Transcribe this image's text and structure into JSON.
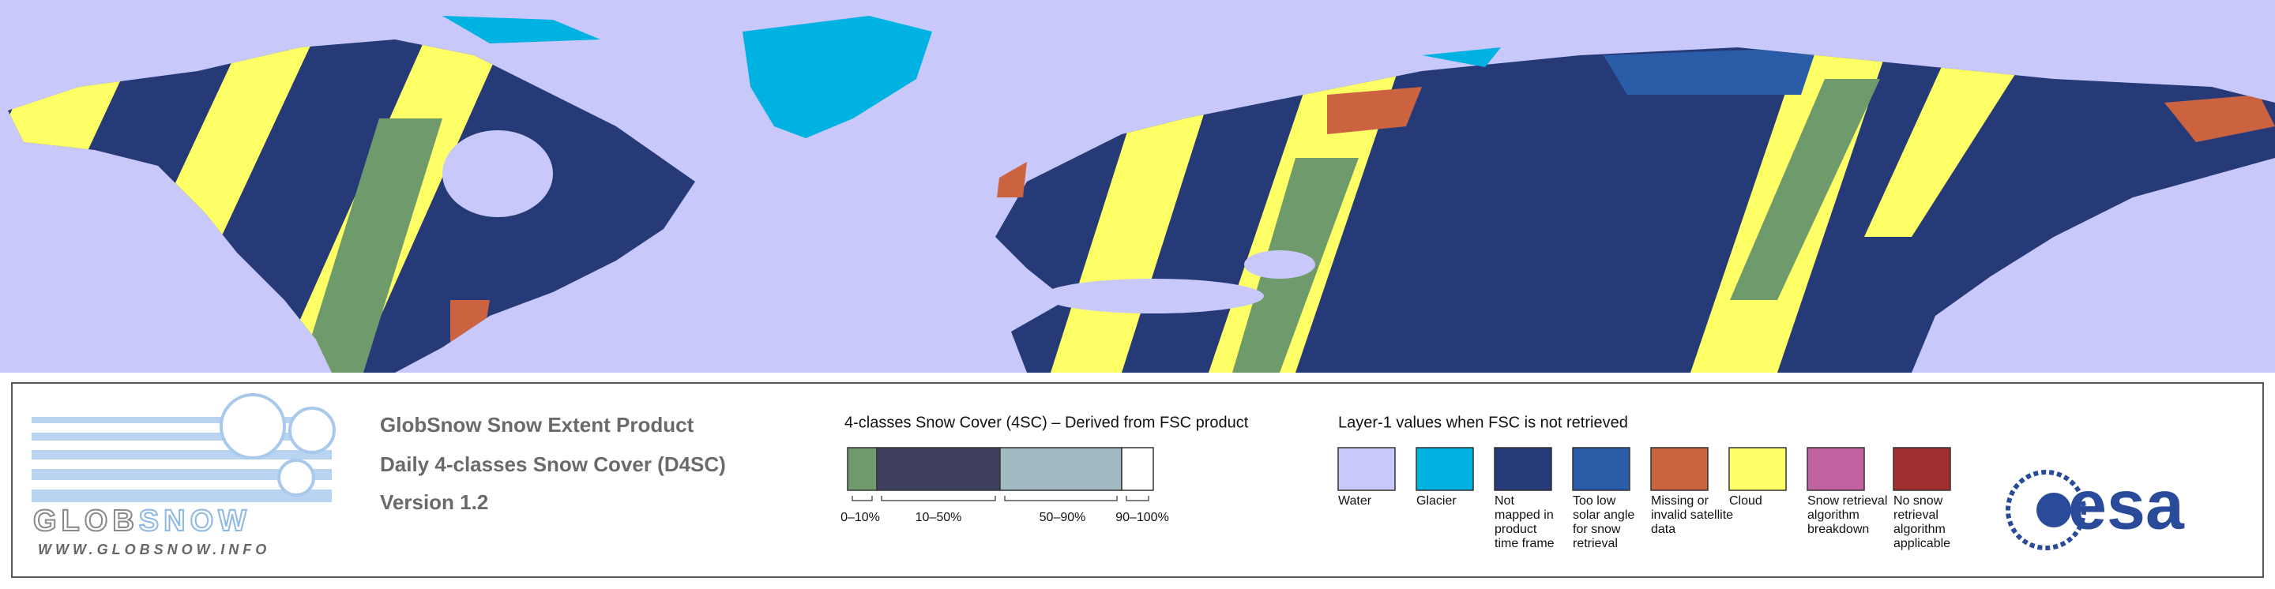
{
  "logo": {
    "word": [
      "GLOB",
      "SNOW"
    ],
    "url": "WWW.GLOBSNOW.INFO"
  },
  "product": [
    "GlobSnow Snow Extent Product",
    "Daily 4-classes Snow Cover (D4SC)",
    "Version 1.2"
  ],
  "classes": {
    "title": "4-classes Snow Cover (4SC) – Derived from FSC product",
    "items": [
      {
        "label": "0–10%",
        "color": "#6f9b6c"
      },
      {
        "label": "10–50%",
        "color": "#3f3f5f"
      },
      {
        "label": "50–90%",
        "color": "#a2bbc2"
      },
      {
        "label": "90–100%",
        "color": "#ffffff"
      }
    ]
  },
  "layer1": {
    "title": "Layer-1 values when FSC is not retrieved",
    "items": [
      {
        "label": [
          "Water"
        ],
        "color": "#c8c8fa"
      },
      {
        "label": [
          "Glacier"
        ],
        "color": "#00b2e2"
      },
      {
        "label": [
          "Not",
          "mapped in",
          "product",
          "time frame"
        ],
        "color": "#263a78"
      },
      {
        "label": [
          "Too low",
          "solar angle",
          "for snow",
          "retrieval"
        ],
        "color": "#2a5ca8"
      },
      {
        "label": [
          "Missing or",
          "invalid satellite",
          "data"
        ],
        "color": "#cc6340"
      },
      {
        "label": [
          "Cloud"
        ],
        "color": "#ffff66"
      },
      {
        "label": [
          "Snow retrieval",
          "algorithm",
          "breakdown"
        ],
        "color": "#c063a0"
      },
      {
        "label": [
          "No snow",
          "retrieval",
          "algorithm",
          "applicable"
        ],
        "color": "#a03030"
      }
    ]
  },
  "esa": "esa"
}
